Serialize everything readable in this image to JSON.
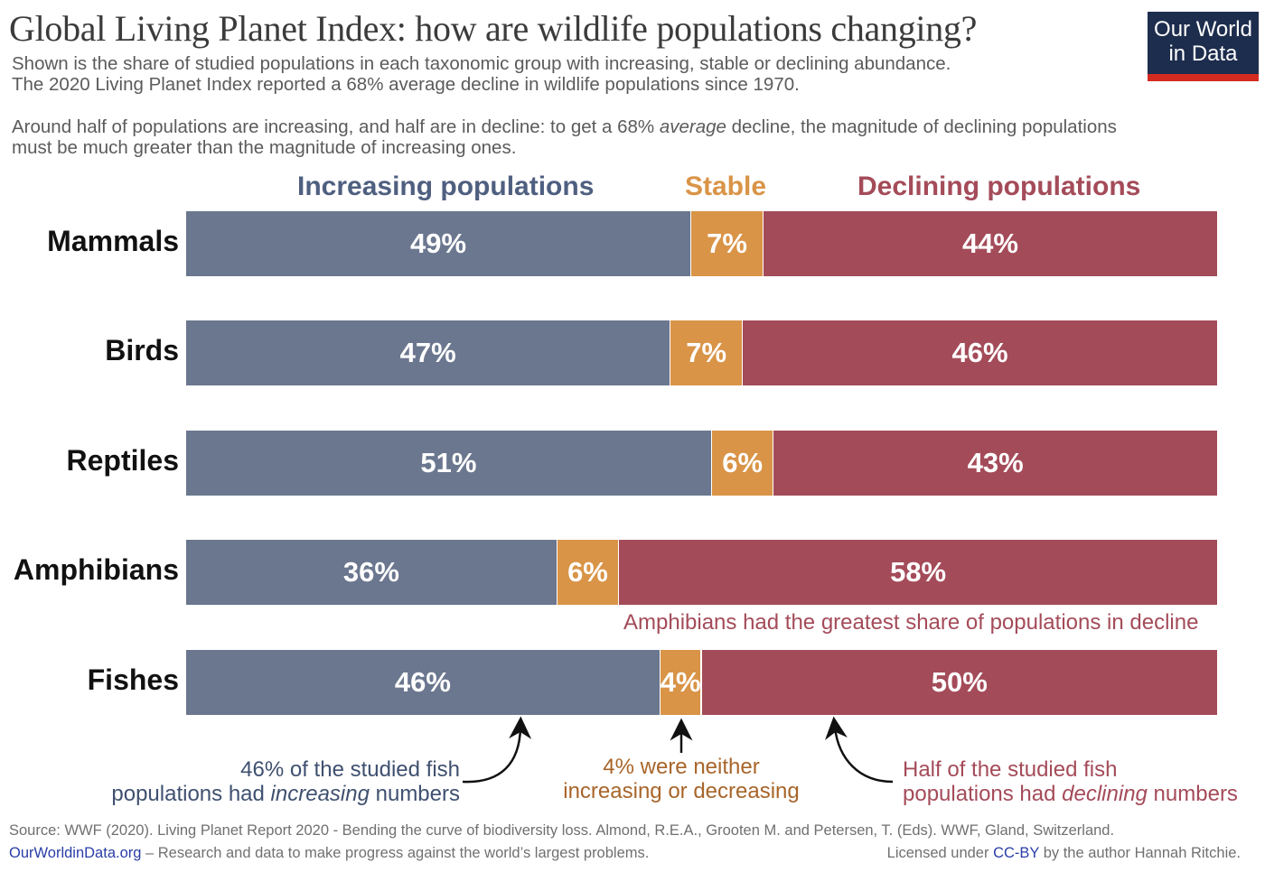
{
  "header": {
    "title": "Global Living Planet Index: how are wildlife populations changing?",
    "subtitle_lines": [
      "Shown is the share of studied populations in each taxonomic group with increasing, stable or declining abundance.",
      "The 2020 Living Planet Index reported a 68% average decline in wildlife populations since 1970."
    ],
    "note_line1_pre": "Around half of populations are increasing, and half are in decline: to get a 68% ",
    "note_line1_em": "average",
    "note_line1_post": " decline, the magnitude of declining populations",
    "note_line2": "must be much greater than the magnitude of increasing ones."
  },
  "logo": {
    "line1": "Our World",
    "line2": "in Data",
    "bg_color": "#1d2d4d",
    "accent_color": "#d42b21"
  },
  "chart_data": {
    "type": "bar",
    "orientation": "horizontal",
    "stacked": true,
    "unit": "%",
    "title": "Global Living Planet Index: how are wildlife populations changing?",
    "xlabel": "",
    "ylabel": "",
    "xlim": [
      0,
      100
    ],
    "grid": false,
    "legend_placement": "top",
    "categories": [
      "Mammals",
      "Birds",
      "Reptiles",
      "Amphibians",
      "Fishes"
    ],
    "series": [
      {
        "name": "Increasing populations",
        "color": "#6b778f",
        "values": [
          49,
          47,
          51,
          36,
          46
        ]
      },
      {
        "name": "Stable",
        "color": "#d99447",
        "values": [
          7,
          7,
          6,
          6,
          4
        ]
      },
      {
        "name": "Declining populations",
        "color": "#a44b59",
        "values": [
          44,
          46,
          43,
          58,
          50
        ]
      }
    ],
    "annotations": [
      {
        "text": "Amphibians had the greatest share of populations in decline",
        "color": "#a44b59"
      },
      {
        "lines": [
          "46% of the studied fish",
          "populations had |increasing| numbers"
        ],
        "color": "#3f5070"
      },
      {
        "lines": [
          "4% were neither",
          "increasing or decreasing"
        ],
        "color": "#a8652a"
      },
      {
        "lines": [
          "Half of the studied fish",
          "populations had |declining| numbers"
        ],
        "color": "#a44b59"
      }
    ]
  },
  "annotation_text": {
    "amphibians": "Amphibians had the greatest share of populations in decline",
    "inc_line1": "46% of the studied fish",
    "inc_line2_pre": "populations had ",
    "inc_line2_em": "increasing",
    "inc_line2_post": " numbers",
    "stable_line1": "4% were neither",
    "stable_line2": "increasing or decreasing",
    "dec_line1": "Half of the studied fish",
    "dec_line2_pre": "populations had ",
    "dec_line2_em": "declining",
    "dec_line2_post": " numbers"
  },
  "footer": {
    "source": "Source: WWF (2020). Living Planet Report 2020 - Bending the curve of biodiversity loss. Almond, R.E.A., Grooten M. and Petersen, T. (Eds). WWF, Gland, Switzerland.",
    "site_link": "OurWorldinData.org",
    "tagline": " – Research and data to make progress against the world’s largest problems.",
    "license_pre": "Licensed under ",
    "license_link": "CC-BY",
    "license_post": " by the author Hannah Ritchie."
  }
}
